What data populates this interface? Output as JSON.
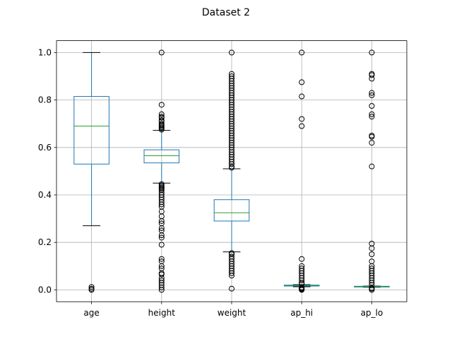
{
  "chart_data": {
    "type": "boxplot",
    "title": "Dataset 2",
    "xlabel": "",
    "ylabel": "",
    "ylim": [
      -0.05,
      1.05
    ],
    "yticks": [
      "0.0",
      "0.2",
      "0.4",
      "0.6",
      "0.8",
      "1.0"
    ],
    "grid": true,
    "categories": [
      "age",
      "height",
      "weight",
      "ap_hi",
      "ap_lo"
    ],
    "boxes": [
      {
        "name": "age",
        "whisker_low": 0.27,
        "q1": 0.53,
        "median": 0.69,
        "q3": 0.815,
        "whisker_high": 1.0,
        "fliers": [
          0.0,
          0.005,
          0.012
        ]
      },
      {
        "name": "height",
        "whisker_low": 0.45,
        "q1": 0.535,
        "median": 0.565,
        "q3": 0.59,
        "whisker_high": 0.672,
        "fliers": [
          1.0,
          0.78,
          0.74,
          0.73,
          0.725,
          0.715,
          0.71,
          0.7,
          0.695,
          0.69,
          0.685,
          0.68,
          0.675,
          0.445,
          0.44,
          0.435,
          0.43,
          0.425,
          0.42,
          0.41,
          0.4,
          0.39,
          0.38,
          0.37,
          0.36,
          0.35,
          0.33,
          0.31,
          0.29,
          0.28,
          0.26,
          0.25,
          0.23,
          0.22,
          0.19,
          0.13,
          0.12,
          0.1,
          0.09,
          0.07,
          0.065,
          0.05,
          0.04,
          0.03,
          0.02,
          0.01,
          0.0
        ]
      },
      {
        "name": "weight",
        "whisker_low": 0.16,
        "q1": 0.29,
        "median": 0.325,
        "q3": 0.38,
        "whisker_high": 0.51,
        "fliers": [
          1.0,
          0.91,
          0.9,
          0.89,
          0.88,
          0.87,
          0.86,
          0.85,
          0.84,
          0.83,
          0.82,
          0.81,
          0.8,
          0.79,
          0.78,
          0.77,
          0.76,
          0.75,
          0.74,
          0.73,
          0.72,
          0.71,
          0.7,
          0.69,
          0.68,
          0.67,
          0.66,
          0.65,
          0.64,
          0.63,
          0.62,
          0.61,
          0.6,
          0.59,
          0.58,
          0.57,
          0.56,
          0.55,
          0.54,
          0.53,
          0.52,
          0.515,
          0.155,
          0.15,
          0.14,
          0.13,
          0.12,
          0.11,
          0.1,
          0.09,
          0.08,
          0.07,
          0.06,
          0.005
        ]
      },
      {
        "name": "ap_hi",
        "whisker_low": 0.013,
        "q1": 0.016,
        "median": 0.018,
        "q3": 0.02,
        "whisker_high": 0.022,
        "fliers": [
          1.0,
          0.875,
          0.815,
          0.72,
          0.69,
          0.13,
          0.1,
          0.09,
          0.08,
          0.07,
          0.06,
          0.05,
          0.04,
          0.03,
          0.025,
          0.01,
          0.008,
          0.005,
          0.002,
          0.0
        ]
      },
      {
        "name": "ap_lo",
        "whisker_low": 0.011,
        "q1": 0.012,
        "median": 0.013,
        "q3": 0.015,
        "whisker_high": 0.016,
        "fliers": [
          1.0,
          0.91,
          0.905,
          0.89,
          0.83,
          0.82,
          0.775,
          0.74,
          0.73,
          0.65,
          0.645,
          0.62,
          0.52,
          0.195,
          0.175,
          0.15,
          0.12,
          0.1,
          0.09,
          0.08,
          0.07,
          0.06,
          0.05,
          0.04,
          0.03,
          0.02,
          0.008,
          0.005,
          0.0
        ]
      }
    ]
  }
}
